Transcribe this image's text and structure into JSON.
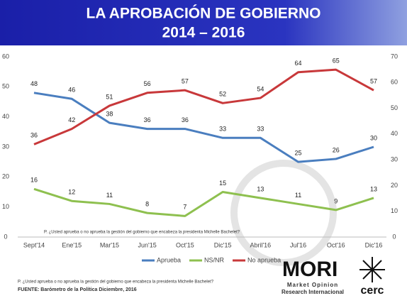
{
  "chart_data": {
    "type": "line",
    "title": "LA APROBACIÓN DE GOBIERNO",
    "subtitle": "2014 – 2016",
    "note": "P. ¿Usted aprueba o no aprueba la gestión del gobierno que encabeza la presidenta Michelle Bachelet?",
    "categories": [
      "Sept'14",
      "Ene'15",
      "Mar'15",
      "Jun'15",
      "Oct'15",
      "Dic'15",
      "Abril'16",
      "Jul'16",
      "Oct'16",
      "Dic'16"
    ],
    "series": [
      {
        "name": "Aprueba",
        "color": "#4a7ebf",
        "values": [
          48,
          46,
          38,
          36,
          36,
          33,
          33,
          25,
          26,
          30
        ]
      },
      {
        "name": "NS/NR",
        "color": "#8ec04f",
        "values": [
          16,
          12,
          11,
          8,
          7,
          15,
          13,
          11,
          9,
          13
        ]
      },
      {
        "name": "No aprueba",
        "color": "#c8383a",
        "axis": "y2",
        "values": [
          36,
          42,
          51,
          56,
          57,
          52,
          54,
          64,
          65,
          57
        ]
      }
    ],
    "ylim": [
      0,
      60
    ],
    "yticks": [
      0,
      10,
      20,
      30,
      40,
      50,
      60
    ],
    "y2lim": [
      0,
      70
    ],
    "y2ticks": [
      0,
      10,
      20,
      30,
      40,
      50,
      60,
      70
    ],
    "grid": false,
    "legend": "bottom"
  },
  "footer": {
    "question": "P. ¿Usted aprueba o no aprueba la gestión del gobierno que encabeza la presidenta Michelle Bachelet?",
    "source": "FUENTE: Barómetro de la Política Diciembre, 2016"
  },
  "logos": {
    "mori": "MORI",
    "mori_line1": "Market Opinion",
    "mori_line2": "Research Internacional",
    "cerc": "cerc"
  }
}
